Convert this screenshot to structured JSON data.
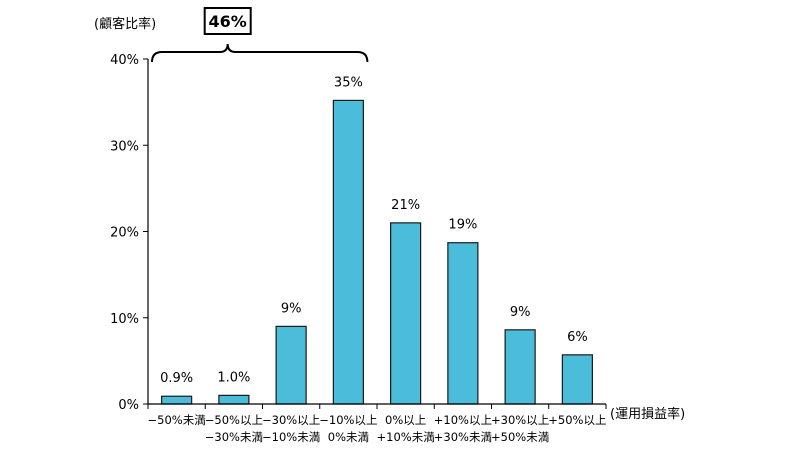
{
  "chart_data": {
    "type": "bar",
    "ylabel": "(顧客比率)",
    "xlabel": "(運用損益率)",
    "ylim": [
      0,
      40
    ],
    "yticks": [
      "0%",
      "10%",
      "20%",
      "30%",
      "40%"
    ],
    "grid": false,
    "legend": "none",
    "bar_color": "#4BBDDB",
    "categories": [
      [
        "−50%未満"
      ],
      [
        "−50%以上",
        "−30%未満"
      ],
      [
        "−30%以上",
        "−10%未満"
      ],
      [
        "−10%以上",
        "0%未満"
      ],
      [
        "0%以上",
        "+10%未満"
      ],
      [
        "+10%以上",
        "+30%未満"
      ],
      [
        "+30%以上",
        "+50%未満"
      ],
      [
        "+50%以上"
      ]
    ],
    "values": [
      0.9,
      1.0,
      9,
      35.2,
      21,
      18.7,
      8.6,
      5.7
    ],
    "data_labels": [
      "0.9%",
      "1.0%",
      "9%",
      "35%",
      "21%",
      "19%",
      "9%",
      "6%"
    ],
    "annotation": {
      "text": "46%",
      "from_category": 0,
      "to_category": 3
    }
  }
}
